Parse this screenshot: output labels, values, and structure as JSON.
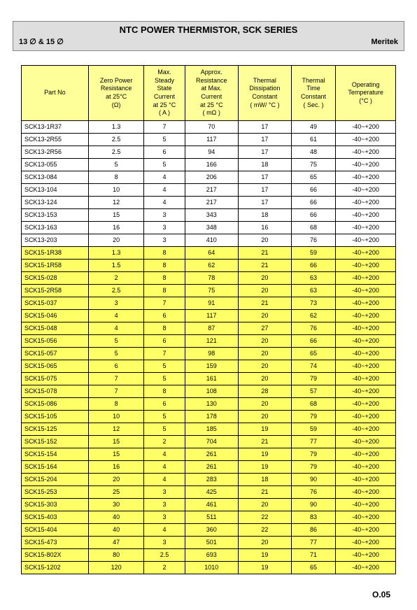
{
  "header": {
    "title": "NTC POWER THERMISTOR, SCK SERIES",
    "left_label": "13 ∅ & 15 ∅",
    "right_label": "Meritek"
  },
  "footer": {
    "page_code": "O.05"
  },
  "columns": [
    "Part  No",
    "Zero Power\nResistance\nat 25°C\n(Ω)",
    "Max.\nSteady\nState\nCurrent\nat 25 °C\n( A )",
    "Approx.\nResistance\nat Max.\nCurrent\nat 25 °C\n( mΩ )",
    "Thermal\nDissipation\nConstant\n( mW/ °C )",
    "Thermal\nTime\nConstant\n( Sec. )",
    "Operating\nTemperature\n(°C )"
  ],
  "rows": [
    {
      "part": "SCK13-1R37",
      "zr": "1.3",
      "cur": "7",
      "res": "70",
      "dc": "17",
      "tc": "49",
      "ot": "-40~+200",
      "g": "w"
    },
    {
      "part": "SCK13-2R55",
      "zr": "2.5",
      "cur": "5",
      "res": "117",
      "dc": "17",
      "tc": "61",
      "ot": "-40~+200",
      "g": "w"
    },
    {
      "part": "SCK13-2R56",
      "zr": "2.5",
      "cur": "6",
      "res": "94",
      "dc": "17",
      "tc": "48",
      "ot": "-40~+200",
      "g": "w"
    },
    {
      "part": "SCK13-055",
      "zr": "5",
      "cur": "5",
      "res": "166",
      "dc": "18",
      "tc": "75",
      "ot": "-40~+200",
      "g": "w"
    },
    {
      "part": "SCK13-084",
      "zr": "8",
      "cur": "4",
      "res": "206",
      "dc": "17",
      "tc": "65",
      "ot": "-40~+200",
      "g": "w"
    },
    {
      "part": "SCK13-104",
      "zr": "10",
      "cur": "4",
      "res": "217",
      "dc": "17",
      "tc": "66",
      "ot": "-40~+200",
      "g": "w"
    },
    {
      "part": "SCK13-124",
      "zr": "12",
      "cur": "4",
      "res": "217",
      "dc": "17",
      "tc": "66",
      "ot": "-40~+200",
      "g": "w"
    },
    {
      "part": "SCK13-153",
      "zr": "15",
      "cur": "3",
      "res": "343",
      "dc": "18",
      "tc": "66",
      "ot": "-40~+200",
      "g": "w"
    },
    {
      "part": "SCK13-163",
      "zr": "16",
      "cur": "3",
      "res": "348",
      "dc": "16",
      "tc": "68",
      "ot": "-40~+200",
      "g": "w"
    },
    {
      "part": "SCK13-203",
      "zr": "20",
      "cur": "3",
      "res": "410",
      "dc": "20",
      "tc": "76",
      "ot": "-40~+200",
      "g": "w"
    },
    {
      "part": "SCK15-1R38",
      "zr": "1.3",
      "cur": "8",
      "res": "64",
      "dc": "21",
      "tc": "59",
      "ot": "-40~+200",
      "g": "y"
    },
    {
      "part": "SCK15-1R58",
      "zr": "1.5",
      "cur": "8",
      "res": "62",
      "dc": "21",
      "tc": "66",
      "ot": "-40~+200",
      "g": "y"
    },
    {
      "part": "SCK15-028",
      "zr": "2",
      "cur": "8",
      "res": "78",
      "dc": "20",
      "tc": "63",
      "ot": "-40~+200",
      "g": "y"
    },
    {
      "part": "SCK15-2R58",
      "zr": "2.5",
      "cur": "8",
      "res": "75",
      "dc": "20",
      "tc": "63",
      "ot": "-40~+200",
      "g": "y"
    },
    {
      "part": "SCK15-037",
      "zr": "3",
      "cur": "7",
      "res": "91",
      "dc": "21",
      "tc": "73",
      "ot": "-40~+200",
      "g": "y"
    },
    {
      "part": "SCK15-046",
      "zr": "4",
      "cur": "6",
      "res": "117",
      "dc": "20",
      "tc": "62",
      "ot": "-40~+200",
      "g": "y"
    },
    {
      "part": "SCK15-048",
      "zr": "4",
      "cur": "8",
      "res": "87",
      "dc": "27",
      "tc": "76",
      "ot": "-40~+200",
      "g": "y"
    },
    {
      "part": "SCK15-056",
      "zr": "5",
      "cur": "6",
      "res": "121",
      "dc": "20",
      "tc": "66",
      "ot": "-40~+200",
      "g": "y"
    },
    {
      "part": "SCK15-057",
      "zr": "5",
      "cur": "7",
      "res": "98",
      "dc": "20",
      "tc": "65",
      "ot": "-40~+200",
      "g": "y"
    },
    {
      "part": "SCK15-065",
      "zr": "6",
      "cur": "5",
      "res": "159",
      "dc": "20",
      "tc": "74",
      "ot": "-40~+200",
      "g": "y"
    },
    {
      "part": "SCK15-075",
      "zr": "7",
      "cur": "5",
      "res": "161",
      "dc": "20",
      "tc": "79",
      "ot": "-40~+200",
      "g": "y"
    },
    {
      "part": "SCK15-078",
      "zr": "7",
      "cur": "8",
      "res": "108",
      "dc": "28",
      "tc": "57",
      "ot": "-40~+200",
      "g": "y"
    },
    {
      "part": "SCK15-086",
      "zr": "8",
      "cur": "6",
      "res": "130",
      "dc": "20",
      "tc": "68",
      "ot": "-40~+200",
      "g": "y"
    },
    {
      "part": "SCK15-105",
      "zr": "10",
      "cur": "5",
      "res": "178",
      "dc": "20",
      "tc": "79",
      "ot": "-40~+200",
      "g": "y"
    },
    {
      "part": "SCK15-125",
      "zr": "12",
      "cur": "5",
      "res": "185",
      "dc": "19",
      "tc": "59",
      "ot": "-40~+200",
      "g": "y"
    },
    {
      "part": "SCK15-152",
      "zr": "15",
      "cur": "2",
      "res": "704",
      "dc": "21",
      "tc": "77",
      "ot": "-40~+200",
      "g": "y"
    },
    {
      "part": "SCK15-154",
      "zr": "15",
      "cur": "4",
      "res": "261",
      "dc": "19",
      "tc": "79",
      "ot": "-40~+200",
      "g": "y"
    },
    {
      "part": "SCK15-164",
      "zr": "16",
      "cur": "4",
      "res": "261",
      "dc": "19",
      "tc": "79",
      "ot": "-40~+200",
      "g": "y"
    },
    {
      "part": "SCK15-204",
      "zr": "20",
      "cur": "4",
      "res": "283",
      "dc": "18",
      "tc": "90",
      "ot": "-40~+200",
      "g": "y"
    },
    {
      "part": "SCK15-253",
      "zr": "25",
      "cur": "3",
      "res": "425",
      "dc": "21",
      "tc": "76",
      "ot": "-40~+200",
      "g": "y"
    },
    {
      "part": "SCK15-303",
      "zr": "30",
      "cur": "3",
      "res": "461",
      "dc": "20",
      "tc": "90",
      "ot": "-40~+200",
      "g": "y"
    },
    {
      "part": "SCK15-403",
      "zr": "40",
      "cur": "3",
      "res": "511",
      "dc": "22",
      "tc": "83",
      "ot": "-40~+200",
      "g": "y"
    },
    {
      "part": "SCK15-404",
      "zr": "40",
      "cur": "4",
      "res": "360",
      "dc": "22",
      "tc": "86",
      "ot": "-40~+200",
      "g": "y"
    },
    {
      "part": "SCK15-473",
      "zr": "47",
      "cur": "3",
      "res": "501",
      "dc": "20",
      "tc": "77",
      "ot": "-40~+200",
      "g": "y"
    },
    {
      "part": "SCK15-802X",
      "zr": "80",
      "cur": "2.5",
      "res": "693",
      "dc": "19",
      "tc": "71",
      "ot": "-40~+200",
      "g": "y"
    },
    {
      "part": "SCK15-1202",
      "zr": "120",
      "cur": "2",
      "res": "1010",
      "dc": "19",
      "tc": "65",
      "ot": "-40~+200",
      "g": "y"
    }
  ],
  "styling": {
    "header_bg": "#dedede",
    "header_border": "#888888",
    "th_bg": "#ffff99",
    "row_white_bg": "#ffffff",
    "row_yellow_bg": "#ffff66",
    "border_color": "#000000",
    "body_font": "Arial",
    "header_title_size": 13,
    "header_sub_size": 11,
    "cell_font_size": 9
  }
}
